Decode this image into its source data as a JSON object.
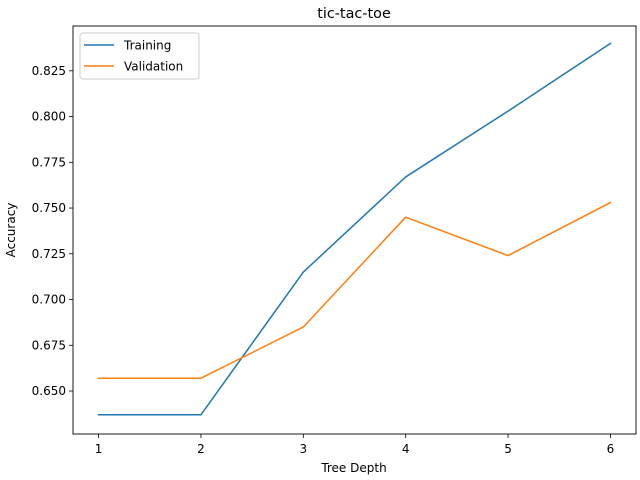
{
  "chart_data": {
    "type": "line",
    "title": "tic-tac-toe",
    "xlabel": "Tree Depth",
    "ylabel": "Accuracy",
    "x": [
      1,
      2,
      3,
      4,
      5,
      6
    ],
    "xlim": [
      0.75,
      6.25
    ],
    "ylim": [
      0.6265,
      0.8495
    ],
    "x_ticks": [
      1,
      2,
      3,
      4,
      5,
      6
    ],
    "y_ticks": [
      0.65,
      0.675,
      0.7,
      0.725,
      0.75,
      0.775,
      0.8,
      0.825
    ],
    "y_tick_labels": [
      "0.650",
      "0.675",
      "0.700",
      "0.725",
      "0.750",
      "0.775",
      "0.800",
      "0.825"
    ],
    "grid": false,
    "legend_position": "top-left",
    "series": [
      {
        "name": "Training",
        "color": "#1f77b4",
        "values": [
          0.637,
          0.637,
          0.715,
          0.767,
          0.803,
          0.84
        ]
      },
      {
        "name": "Validation",
        "color": "#ff7f0e",
        "values": [
          0.657,
          0.657,
          0.685,
          0.745,
          0.724,
          0.753
        ]
      }
    ]
  }
}
